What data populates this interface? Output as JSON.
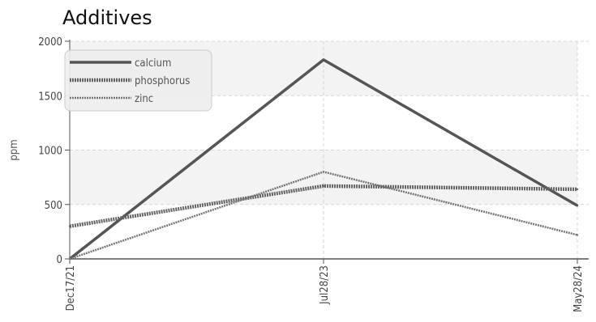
{
  "chart_data": {
    "type": "line",
    "title": "Additives",
    "ylabel": "ppm",
    "xlabel": "",
    "categories": [
      "Dec17/21",
      "Jul28/23",
      "May28/24"
    ],
    "ylim": [
      0,
      2000
    ],
    "yticks": [
      0,
      500,
      1000,
      1500,
      2000
    ],
    "grid": true,
    "legend_position": "top-left",
    "series": [
      {
        "name": "calcium",
        "values": [
          0,
          1830,
          490
        ],
        "color": "#555555",
        "style": "solid"
      },
      {
        "name": "phosphorus",
        "values": [
          300,
          670,
          640
        ],
        "color": "#666666",
        "style": "dashed-thick"
      },
      {
        "name": "zinc",
        "values": [
          0,
          800,
          220
        ],
        "color": "#777777",
        "style": "dashed-thin"
      }
    ]
  }
}
